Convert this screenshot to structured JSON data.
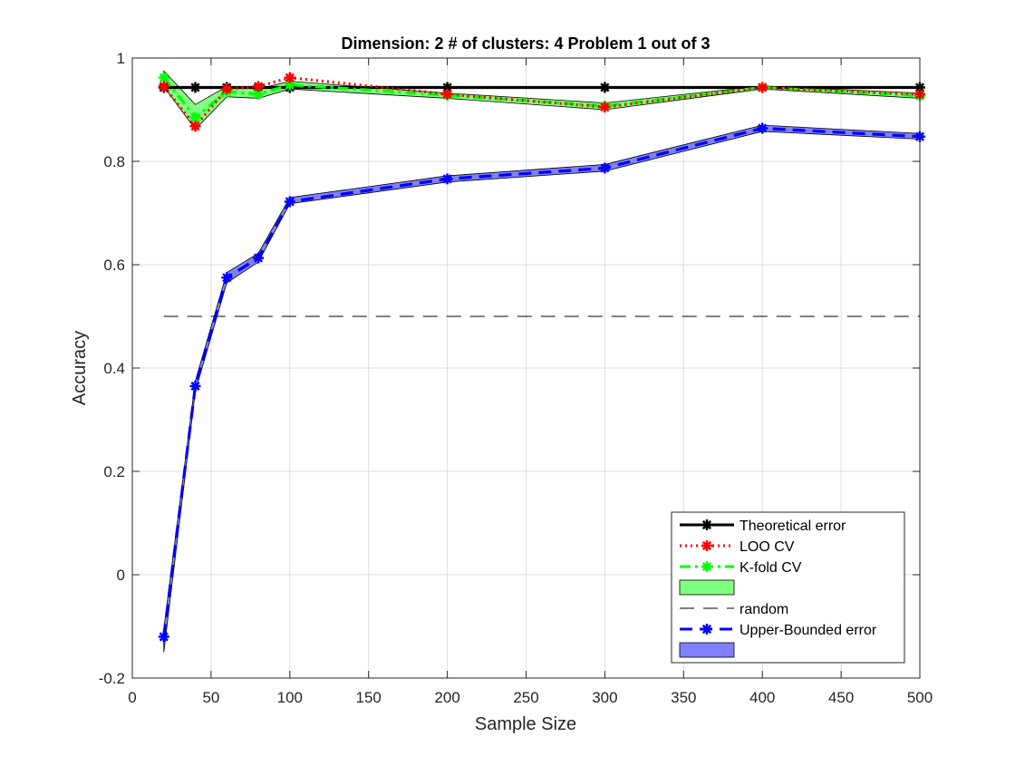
{
  "chart_data": {
    "type": "line",
    "title": "Dimension: 2 # of clusters: 4 Problem 1 out of 3",
    "xlabel": "Sample Size",
    "ylabel": "Accuracy",
    "xlim": [
      0,
      500
    ],
    "ylim": [
      -0.2,
      1
    ],
    "xticks": [
      0,
      50,
      100,
      150,
      200,
      250,
      300,
      350,
      400,
      450,
      500
    ],
    "yticks": [
      -0.2,
      0,
      0.2,
      0.4,
      0.6,
      0.8,
      1
    ],
    "grid": true,
    "legend_position": "bottom-right",
    "x": [
      20,
      40,
      60,
      80,
      100,
      200,
      300,
      400,
      500
    ],
    "series": [
      {
        "name": "Theoretical error",
        "style": "solid",
        "color": "#000000",
        "marker": "star",
        "values": [
          0.943,
          0.943,
          0.943,
          0.943,
          0.943,
          0.943,
          0.943,
          0.943,
          0.943
        ]
      },
      {
        "name": "LOO CV",
        "style": "dotted",
        "color": "#ff0000",
        "marker": "star",
        "values": [
          0.945,
          0.868,
          0.94,
          0.945,
          0.962,
          0.93,
          0.905,
          0.943,
          0.93
        ]
      },
      {
        "name": "K-fold CV",
        "style": "dashdot",
        "color": "#00ff00",
        "marker": "star",
        "values": [
          0.962,
          0.885,
          0.935,
          0.93,
          0.948,
          0.928,
          0.907,
          0.943,
          0.927
        ]
      },
      {
        "name": "",
        "style": "band",
        "color": "#80ff80",
        "upper": [
          0.975,
          0.91,
          0.945,
          0.94,
          0.955,
          0.932,
          0.913,
          0.946,
          0.932
        ],
        "lower": [
          0.945,
          0.862,
          0.925,
          0.922,
          0.94,
          0.922,
          0.9,
          0.94,
          0.922
        ]
      },
      {
        "name": "random",
        "style": "dashed",
        "color": "#000000",
        "marker": "none",
        "values": [
          0.5,
          0.5,
          0.5,
          0.5,
          0.5,
          0.5,
          0.5,
          0.5,
          0.5
        ]
      },
      {
        "name": "Upper-Bounded error",
        "style": "dashed",
        "color": "#0000ff",
        "marker": "star",
        "values": [
          -0.12,
          0.365,
          0.575,
          0.613,
          0.722,
          0.766,
          0.787,
          0.864,
          0.848
        ]
      },
      {
        "name": "",
        "style": "band",
        "color": "#8080ff",
        "upper": [
          -0.105,
          0.375,
          0.585,
          0.622,
          0.73,
          0.772,
          0.794,
          0.87,
          0.854
        ],
        "lower": [
          -0.15,
          0.355,
          0.565,
          0.605,
          0.718,
          0.76,
          0.781,
          0.858,
          0.843
        ]
      }
    ]
  }
}
